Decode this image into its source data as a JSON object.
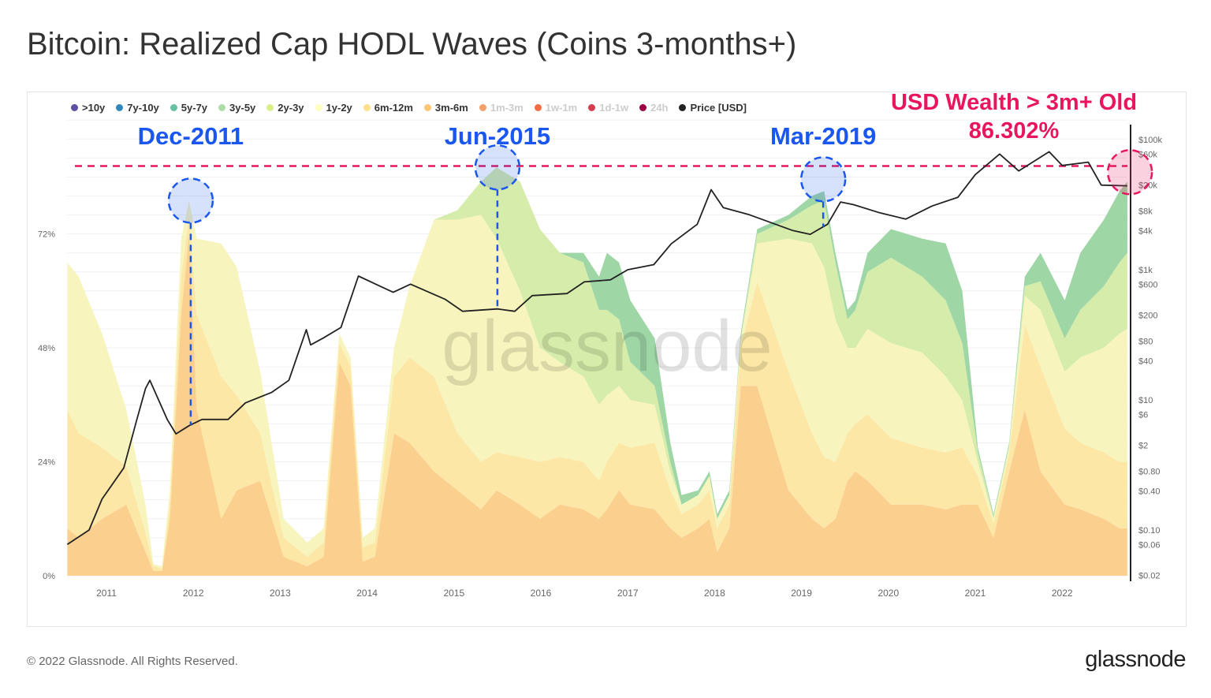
{
  "chart_data": {
    "type": "area",
    "title": "Bitcoin: Realized Cap HODL Waves (Coins 3-months+)",
    "stacked": true,
    "ylim": [
      0,
      96
    ],
    "y_ticks": [
      "0%",
      "24%",
      "48%",
      "72%"
    ],
    "y2_scale": "log",
    "y2_ticks": [
      "$0.02",
      "$0.06",
      "$0.10",
      "$0.40",
      "$0.80",
      "$2",
      "$6",
      "$10",
      "$40",
      "$80",
      "$200",
      "$600",
      "$1k",
      "$4k",
      "$8k",
      "$20k",
      "$60k",
      "$100k"
    ],
    "y2_tick_values": [
      0.02,
      0.06,
      0.1,
      0.4,
      0.8,
      2,
      6,
      10,
      40,
      80,
      200,
      600,
      1000,
      4000,
      8000,
      20000,
      60000,
      100000
    ],
    "x_ticks": [
      "2011",
      "2012",
      "2013",
      "2014",
      "2015",
      "2016",
      "2017",
      "2018",
      "2019",
      "2020",
      "2021",
      "2022"
    ],
    "xlim": [
      2010.55,
      2022.8
    ],
    "grid": true,
    "legend": [
      {
        "name": ">10y",
        "color": "#5e4fa2",
        "active": true
      },
      {
        "name": "7y-10y",
        "color": "#3288bd",
        "active": true
      },
      {
        "name": "5y-7y",
        "color": "#66c2a5",
        "active": true
      },
      {
        "name": "3y-5y",
        "color": "#abdda4",
        "active": true
      },
      {
        "name": "2y-3y",
        "color": "#d9ef8b",
        "active": true
      },
      {
        "name": "1y-2y",
        "color": "#ffffbf",
        "active": true
      },
      {
        "name": "6m-12m",
        "color": "#fee08b",
        "active": true
      },
      {
        "name": "3m-6m",
        "color": "#fdc672",
        "active": true
      },
      {
        "name": "1m-3m",
        "color": "#f4a06a",
        "active": false
      },
      {
        "name": "1w-1m",
        "color": "#f46d43",
        "active": false
      },
      {
        "name": "1d-1w",
        "color": "#d53e4f",
        "active": false
      },
      {
        "name": "24h",
        "color": "#9e0142",
        "active": false
      },
      {
        "name": "Price [USD]",
        "color": "#222222",
        "active": true
      }
    ],
    "x": [
      2010.55,
      2010.68,
      2010.95,
      2011.23,
      2011.45,
      2011.54,
      2011.64,
      2011.73,
      2011.86,
      2011.95,
      2012.04,
      2012.32,
      2012.5,
      2012.77,
      2013.04,
      2013.31,
      2013.5,
      2013.68,
      2013.81,
      2013.95,
      2014.09,
      2014.31,
      2014.49,
      2014.77,
      2015.04,
      2015.31,
      2015.49,
      2015.76,
      2015.99,
      2016.22,
      2016.49,
      2016.67,
      2016.76,
      2016.9,
      2017.03,
      2017.31,
      2017.49,
      2017.62,
      2017.81,
      2017.94,
      2018.03,
      2018.17,
      2018.3,
      2018.49,
      2018.85,
      2019.12,
      2019.26,
      2019.39,
      2019.53,
      2019.62,
      2019.76,
      2020.03,
      2020.39,
      2020.66,
      2020.85,
      2021.03,
      2021.21,
      2021.39,
      2021.57,
      2021.75,
      2022.03,
      2022.21,
      2022.48,
      2022.66,
      2022.75
    ],
    "series": [
      {
        "name": "3m-6m",
        "fill": "#fbd08f",
        "values": [
          10,
          8,
          12,
          15,
          5,
          1,
          1,
          12,
          55,
          72,
          35,
          12,
          18,
          20,
          4,
          2,
          4,
          45,
          40,
          3,
          4,
          30,
          28,
          22,
          18,
          14,
          18,
          15,
          12,
          15,
          14,
          12,
          14,
          18,
          15,
          14,
          10,
          8,
          10,
          12,
          5,
          10,
          40,
          40,
          18,
          12,
          10,
          12,
          20,
          22,
          20,
          15,
          15,
          14,
          15,
          15,
          8,
          22,
          35,
          22,
          15,
          14,
          12,
          10,
          10
        ]
      },
      {
        "name": "6m-12m",
        "fill": "#fde7a6",
        "values": [
          25,
          22,
          15,
          8,
          4,
          1,
          0.5,
          3,
          8,
          4,
          20,
          30,
          20,
          10,
          4,
          2,
          3,
          4,
          4,
          3,
          3,
          12,
          18,
          20,
          12,
          10,
          8,
          10,
          12,
          10,
          10,
          8,
          10,
          10,
          12,
          14,
          8,
          5,
          5,
          6,
          5,
          5,
          8,
          22,
          25,
          18,
          15,
          12,
          10,
          10,
          14,
          14,
          12,
          12,
          12,
          6,
          3,
          4,
          18,
          22,
          16,
          14,
          14,
          14,
          14
        ]
      },
      {
        "name": "1y-2y",
        "fill": "#f7f5bd",
        "values": [
          31,
          33,
          24,
          12,
          6,
          0.5,
          0.5,
          3,
          8,
          3,
          16,
          28,
          27,
          13,
          4,
          3,
          3,
          2,
          2,
          2,
          3,
          6,
          15,
          33,
          45,
          52,
          45,
          35,
          24,
          20,
          18,
          16,
          14,
          12,
          10,
          8,
          4,
          2,
          2,
          3,
          2,
          2,
          2,
          8,
          28,
          40,
          40,
          30,
          18,
          16,
          18,
          20,
          20,
          16,
          10,
          3,
          1,
          1,
          6,
          12,
          12,
          18,
          22,
          27,
          28
        ]
      },
      {
        "name": "2y-3y",
        "fill": "#d6ecaa",
        "values": [
          0,
          0,
          0,
          0,
          0,
          0,
          0,
          0,
          0,
          0,
          0,
          0,
          0,
          0,
          0,
          0,
          0,
          0,
          0,
          0,
          0,
          0,
          0,
          0,
          2,
          7,
          15,
          23,
          25,
          23,
          24,
          20,
          18,
          14,
          8,
          4,
          2,
          0,
          0,
          0,
          0,
          0,
          0,
          2,
          4,
          8,
          14,
          12,
          6,
          8,
          12,
          18,
          16,
          16,
          12,
          2,
          0.5,
          0.5,
          2,
          6,
          7,
          10,
          13,
          15,
          16
        ]
      },
      {
        "name": "3y-5y",
        "fill": "#9fd6a6",
        "values": [
          0,
          0,
          0,
          0,
          0,
          0,
          0,
          0,
          0,
          0,
          0,
          0,
          0,
          0,
          0,
          0,
          0,
          0,
          0,
          0,
          0,
          0,
          0,
          0,
          0,
          0,
          0,
          0,
          0,
          0,
          2,
          7,
          12,
          12,
          13,
          10,
          4,
          2,
          1,
          1,
          1,
          1,
          1,
          1,
          1,
          2,
          2,
          2,
          2,
          2,
          4,
          6,
          8,
          12,
          11,
          1,
          0.5,
          0.5,
          2,
          6,
          8,
          12,
          14,
          15,
          15
        ]
      }
    ],
    "price_series": {
      "name": "Price [USD]",
      "x": [
        2010.55,
        2010.8,
        2010.95,
        2011.2,
        2011.35,
        2011.45,
        2011.5,
        2011.7,
        2011.8,
        2011.95,
        2012.1,
        2012.4,
        2012.6,
        2012.9,
        2013.1,
        2013.3,
        2013.35,
        2013.5,
        2013.7,
        2013.9,
        2014.1,
        2014.3,
        2014.5,
        2014.9,
        2015.1,
        2015.5,
        2015.7,
        2015.9,
        2016.3,
        2016.5,
        2016.8,
        2017.0,
        2017.3,
        2017.5,
        2017.8,
        2017.96,
        2018.1,
        2018.4,
        2018.9,
        2019.1,
        2019.3,
        2019.45,
        2019.6,
        2019.9,
        2020.2,
        2020.5,
        2020.8,
        2021.0,
        2021.28,
        2021.5,
        2021.85,
        2022.0,
        2022.3,
        2022.45,
        2022.75
      ],
      "values": [
        0.06,
        0.1,
        0.3,
        0.9,
        5,
        15,
        20,
        5,
        3,
        4,
        5,
        5,
        9,
        13,
        20,
        120,
        70,
        90,
        130,
        800,
        600,
        450,
        600,
        350,
        230,
        250,
        230,
        400,
        430,
        650,
        700,
        1000,
        1200,
        2500,
        5000,
        17000,
        9000,
        7000,
        4000,
        3500,
        5000,
        11000,
        10000,
        7500,
        6000,
        9500,
        13000,
        29000,
        60000,
        33000,
        65000,
        40000,
        45000,
        20000,
        19500
      ]
    },
    "reference_line": {
      "value": 86.302,
      "color": "#e8175d"
    },
    "annotations": [
      {
        "label": "Dec-2011",
        "x": 2011.97,
        "y": 79,
        "color": "#1a56f0"
      },
      {
        "label": "Jun-2015",
        "x": 2015.5,
        "y": 86,
        "color": "#1a56f0"
      },
      {
        "label": "Mar-2019",
        "x": 2019.25,
        "y": 83.5,
        "color": "#1a56f0"
      },
      {
        "label": "USD Wealth > 3m+ Old",
        "value_label": "86.302%",
        "x": 2022.78,
        "y": 85,
        "color": "#e8175d"
      }
    ]
  },
  "footer": {
    "copyright": "© 2022 Glassnode. All Rights Reserved.",
    "brand": "glassnode",
    "watermark": "glassnode"
  }
}
